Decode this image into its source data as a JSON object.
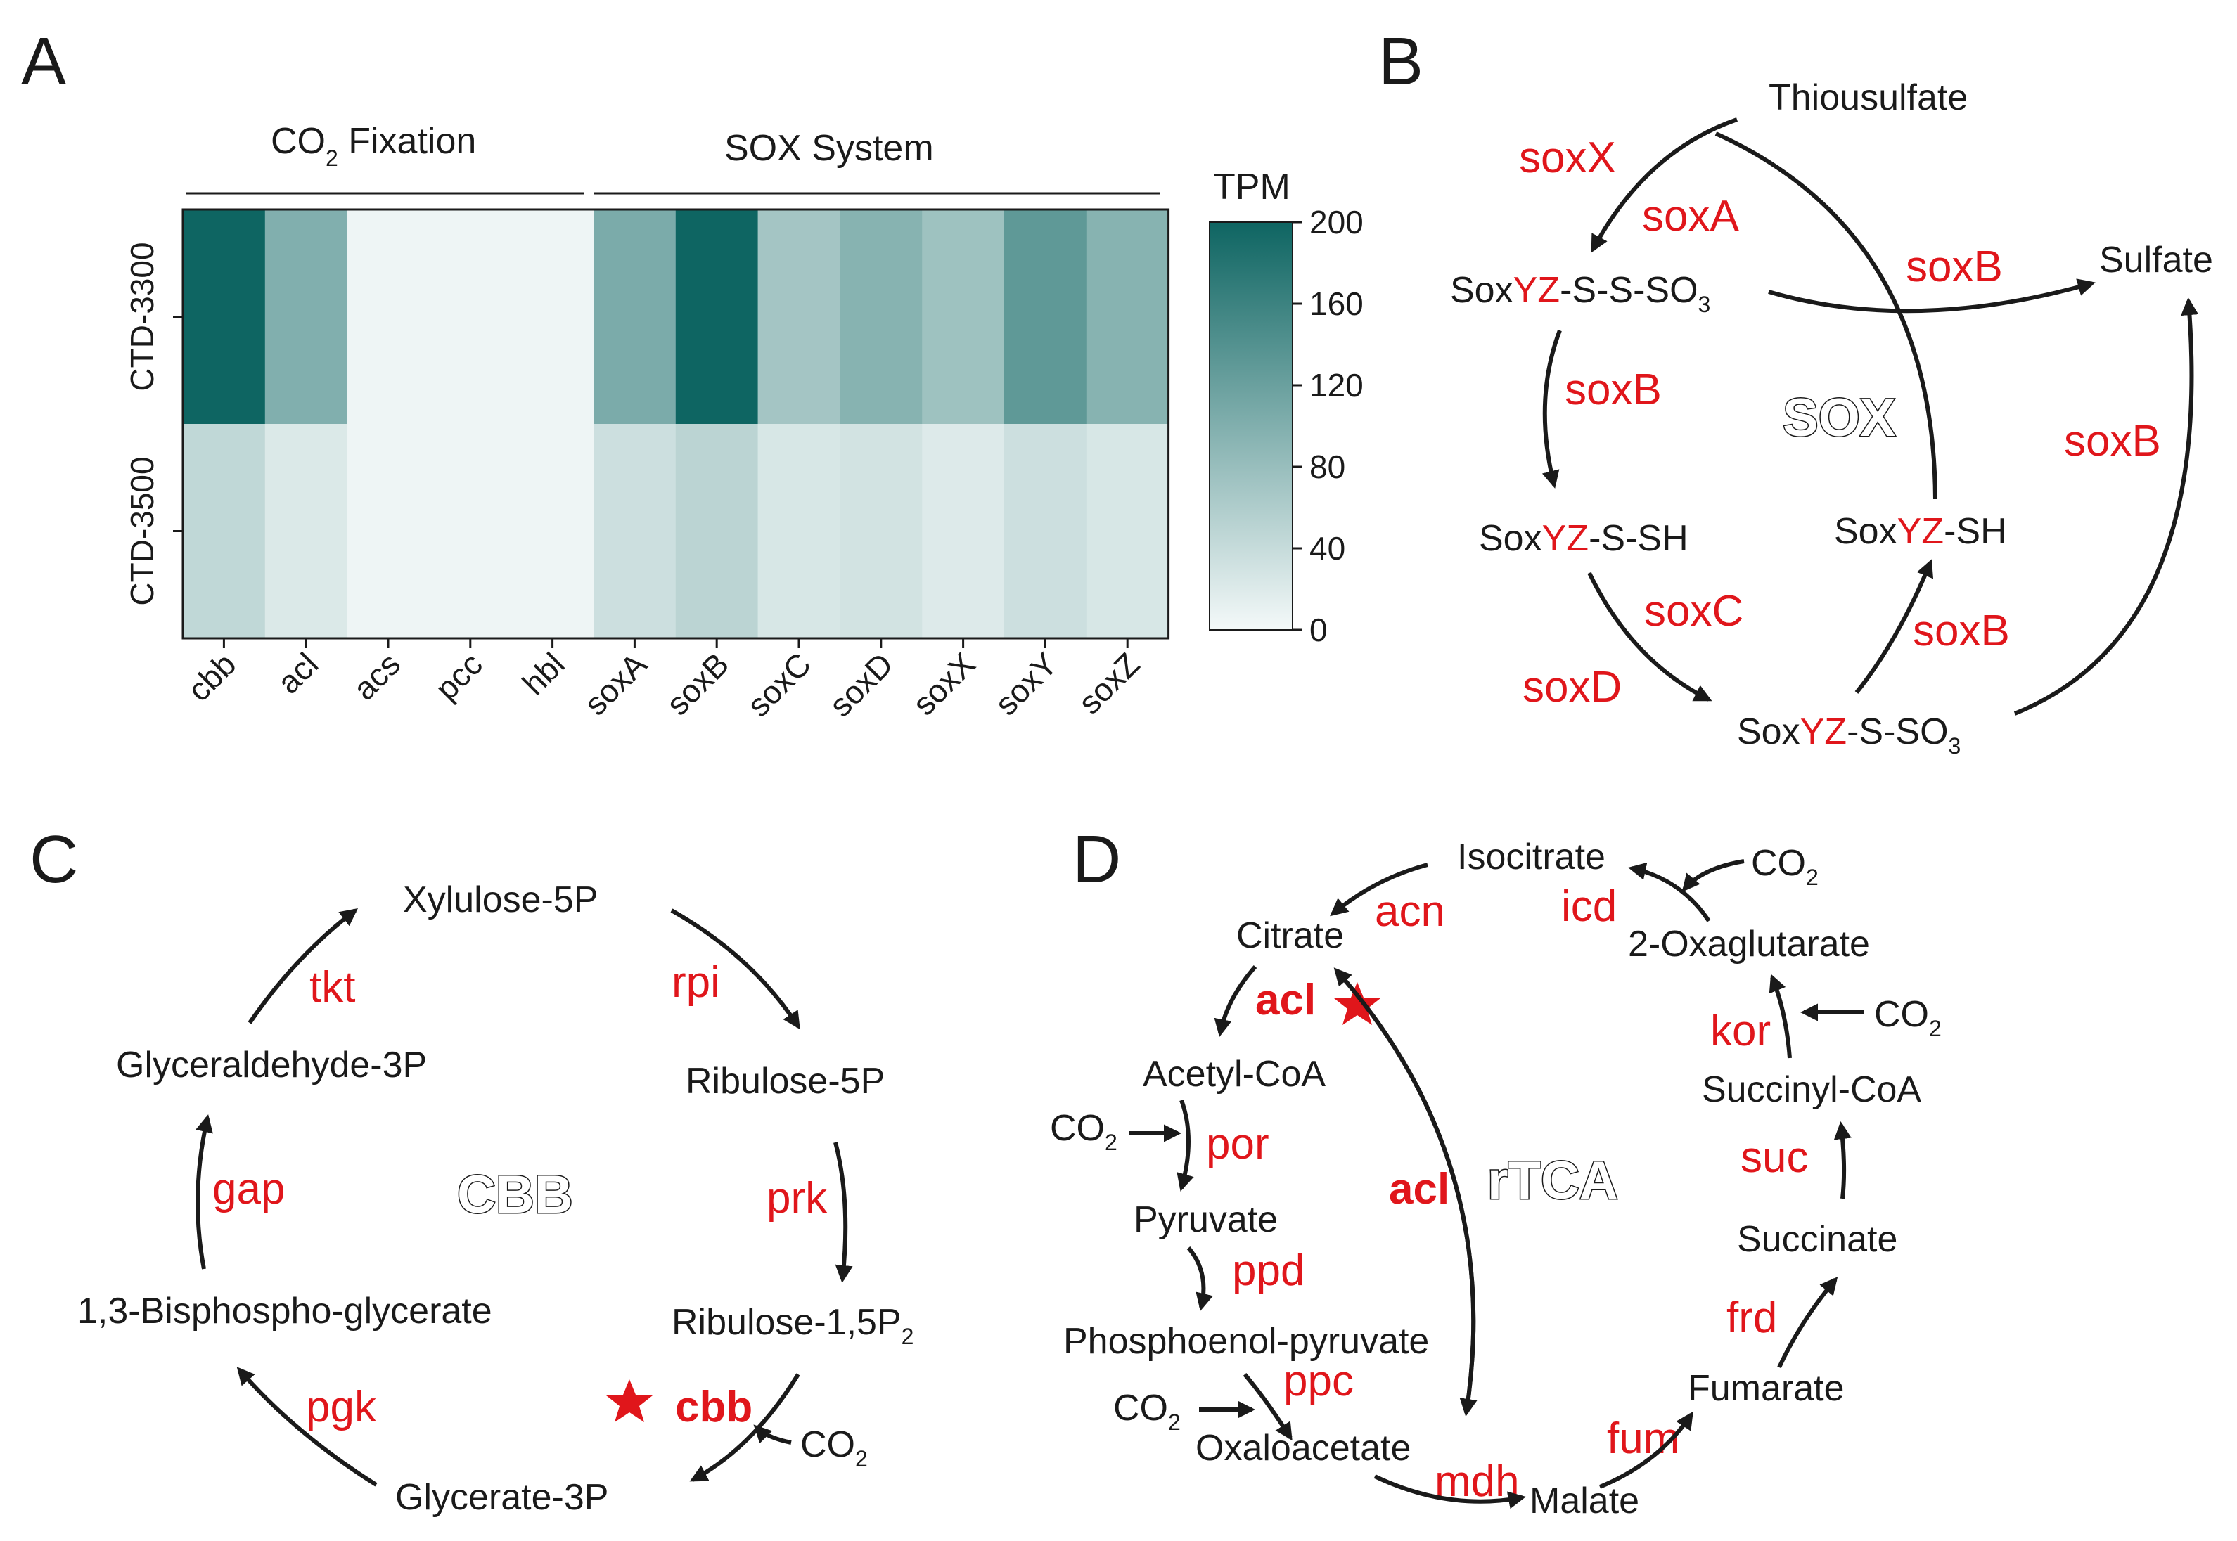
{
  "panels": {
    "a": "A",
    "b": "B",
    "c": "C",
    "d": "D"
  },
  "chart_data": {
    "type": "heatmap",
    "group_labels": [
      {
        "base": "CO",
        "sub": "2",
        "rest": " Fixation"
      },
      {
        "base": "SOX System",
        "sub": "",
        "rest": ""
      }
    ],
    "rows": [
      "CTD-3300",
      "CTD-3500"
    ],
    "columns": [
      "cbb",
      "acl",
      "acs",
      "pcc",
      "hbl",
      "soxA",
      "soxB",
      "soxC",
      "soxD",
      "soxX",
      "soxY",
      "soxZ"
    ],
    "values": [
      [
        200,
        100,
        5,
        5,
        5,
        105,
        200,
        70,
        95,
        75,
        130,
        95
      ],
      [
        45,
        22,
        5,
        5,
        5,
        35,
        50,
        25,
        30,
        20,
        35,
        25
      ]
    ],
    "colorbar": {
      "title": "TPM",
      "ticks": [
        "200",
        "160",
        "120",
        "80",
        "40",
        "0"
      ],
      "min": 0,
      "max": 200,
      "low_color": "#f4f9f9",
      "high_color": "#0e6562"
    }
  },
  "panel_b": {
    "center": "SOX",
    "nodes": {
      "thiosulfate": "Thiousulfate",
      "sulfate": "Sulfate",
      "yz_sso3_a": "Sox",
      "yz_sso3_b": "YZ",
      "yz_sso3_c": "-S-S-SO",
      "yz_sso3_sub": "3",
      "yz_ssh_a": "Sox",
      "yz_ssh_b": "YZ",
      "yz_ssh_c": "-S-SH",
      "yz_sh_a": "Sox",
      "yz_sh_b": "YZ",
      "yz_sh_c": "-SH",
      "yz_so3_a": "Sox",
      "yz_so3_b": "YZ",
      "yz_so3_c": "-S-SO",
      "yz_so3_sub": "3"
    },
    "enzymes": {
      "soxX": "soxX",
      "soxA": "soxA",
      "soxB_top": "soxB",
      "soxB_left": "soxB",
      "soxC": "soxC",
      "soxD": "soxD",
      "soxB_right": "soxB",
      "soxB_bottom": "soxB"
    }
  },
  "panel_c": {
    "center": "CBB",
    "nodes": {
      "xylulose": "Xylulose-5P",
      "ribulose5p": "Ribulose-5P",
      "ribulose15": "Ribulose-1,5P",
      "ribulose15_sub": "2",
      "glycerate3p": "Glycerate-3P",
      "bisphospho": "1,3-Bisphospho-glycerate",
      "glyceraldehyde": "Glyceraldehyde-3P",
      "co2": "CO",
      "co2_sub": "2"
    },
    "enzymes": {
      "rpi": "rpi",
      "prk": "prk",
      "cbb": "cbb",
      "pgk": "pgk",
      "gap": "gap",
      "tkt": "tkt"
    }
  },
  "panel_d": {
    "center": "rTCA",
    "nodes": {
      "isocitrate": "Isocitrate",
      "citrate": "Citrate",
      "oxaglutarate": "2-Oxaglutarate",
      "acetylcoa": "Acetyl-CoA",
      "pyruvate": "Pyruvate",
      "pep": "Phosphoenol-pyruvate",
      "oxaloacetate": "Oxaloacetate",
      "malate": "Malate",
      "fumarate": "Fumarate",
      "succinate": "Succinate",
      "succinylcoa": "Succinyl-CoA",
      "co2": "CO",
      "co2_sub": "2"
    },
    "enzymes": {
      "acn": "acn",
      "icd": "icd",
      "acl_bold": "acl",
      "acl_mid": "acl",
      "kor": "kor",
      "por": "por",
      "ppd": "ppd",
      "ppc": "ppc",
      "mdh": "mdh",
      "fum": "fum",
      "frd": "frd",
      "suc": "suc"
    }
  }
}
